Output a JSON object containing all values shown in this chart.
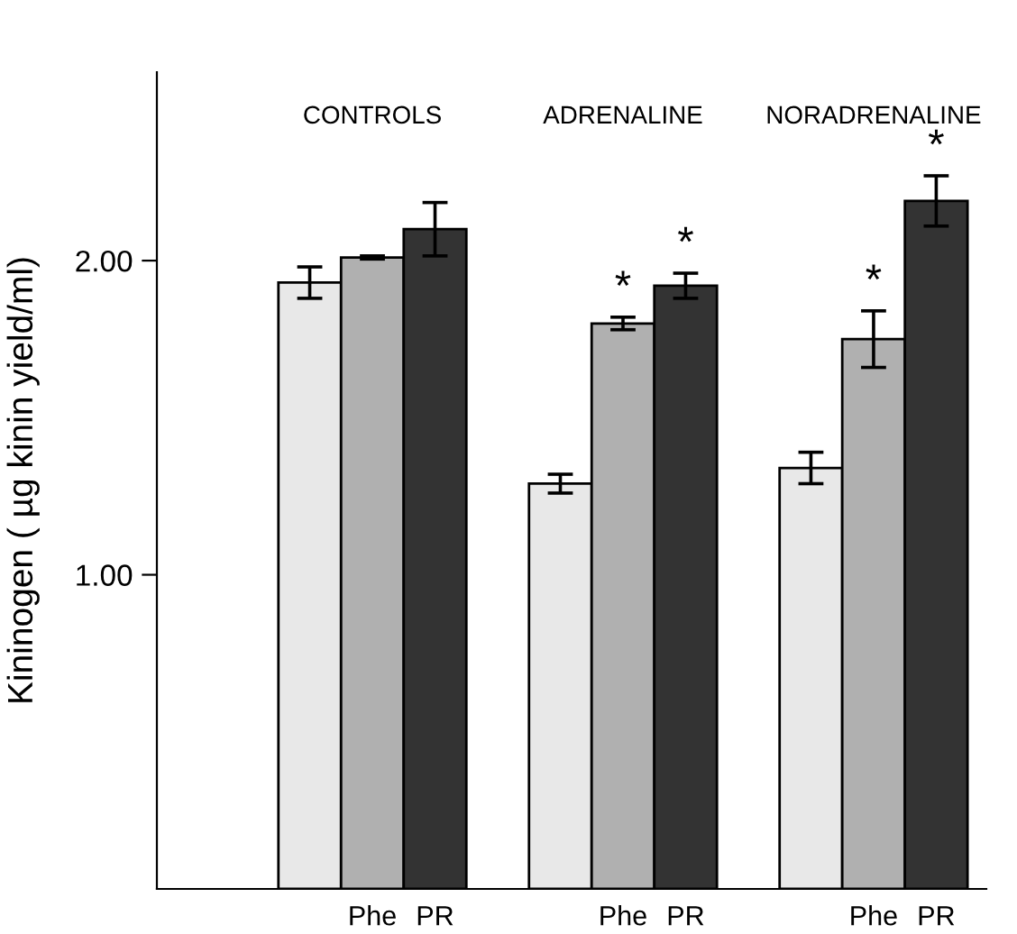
{
  "chart_data": {
    "type": "bar",
    "ylabel": "Kininogen ( µg kinin yield/ml)",
    "categories": [
      null,
      null,
      null
    ],
    "series": [
      {
        "color": "#e8e8e8",
        "values": [
          1.93,
          1.29,
          1.34
        ],
        "errors": [
          0.05,
          0.03,
          0.05
        ]
      },
      {
        "name": "Phe",
        "color": "#b0b0b0",
        "values": [
          2.01,
          1.8,
          1.75
        ],
        "errors": [
          0.005,
          0.02,
          0.09
        ],
        "value_labels": [
          null,
          "*",
          "*"
        ]
      },
      {
        "name": "PR",
        "color": "#333333",
        "values": [
          2.1,
          1.92,
          2.19
        ],
        "errors": [
          0.085,
          0.04,
          0.08
        ],
        "value_labels": [
          null,
          "*",
          "*"
        ]
      }
    ],
    "annotations": [
      "CONTROLS",
      "ADRENALINE",
      "NORADRENALINE"
    ],
    "ylim": [
      0,
      2.6
    ],
    "yticks": [
      {
        "value": 1,
        "label": "1.00"
      },
      {
        "value": 2,
        "label": "2.00"
      }
    ],
    "grid": false,
    "legend": false
  }
}
